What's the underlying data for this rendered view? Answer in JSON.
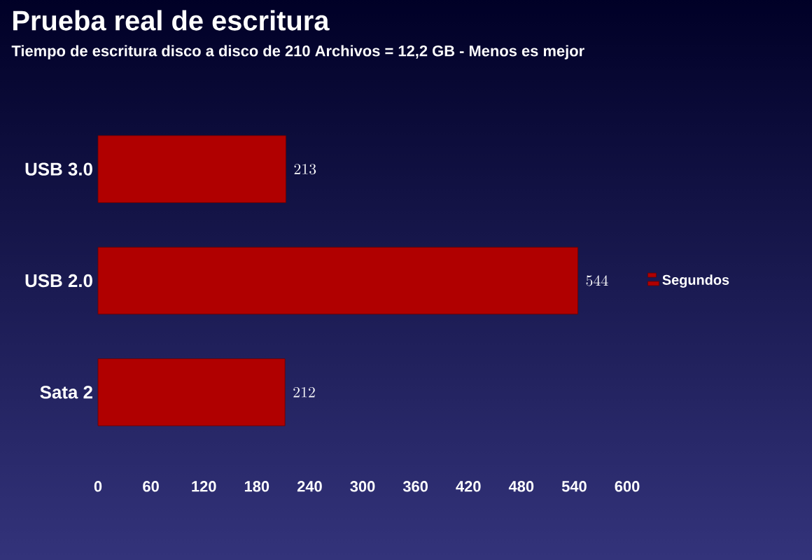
{
  "chart_data": {
    "type": "bar",
    "orientation": "horizontal",
    "title": "Prueba real de escritura",
    "subtitle": "Tiempo de escritura disco a disco de 210 Archivos = 12,2 GB - Menos es mejor",
    "categories": [
      "USB 3.0",
      "USB 2.0",
      "Sata 2"
    ],
    "series": [
      {
        "name": "Segundos",
        "color": "#b00000",
        "values": [
          213,
          544,
          212
        ]
      }
    ],
    "xlim": [
      0,
      600
    ],
    "xticks": [
      0,
      60,
      120,
      180,
      240,
      300,
      360,
      420,
      480,
      540,
      600
    ],
    "data_labels": true,
    "legend": "right"
  }
}
